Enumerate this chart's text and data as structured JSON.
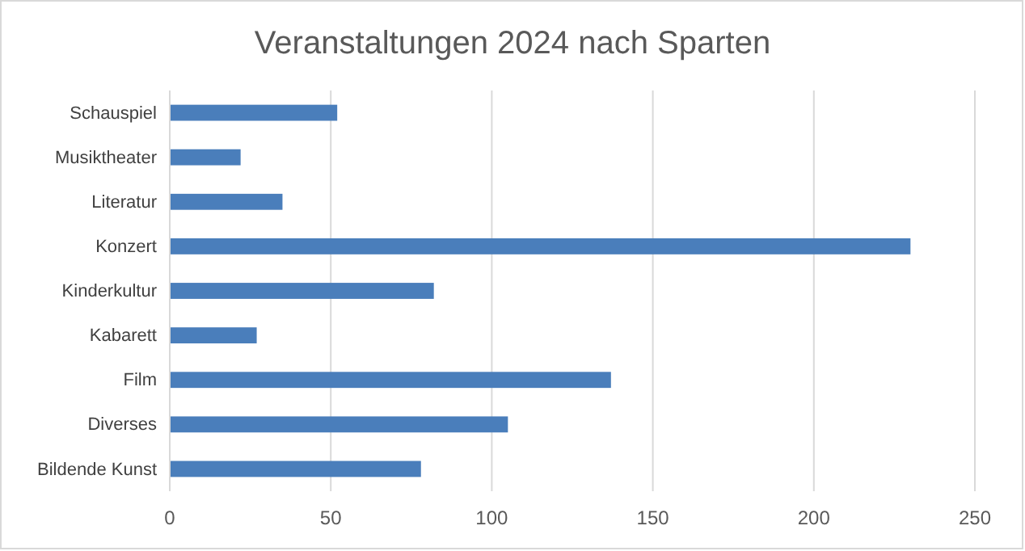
{
  "chart_data": {
    "type": "bar",
    "orientation": "horizontal",
    "title": "Veranstaltungen 2024 nach Sparten",
    "categories": [
      "Schauspiel",
      "Musiktheater",
      "Literatur",
      "Konzert",
      "Kinderkultur",
      "Kabarett",
      "Film",
      "Diverses",
      "Bildende Kunst"
    ],
    "values": [
      52,
      22,
      35,
      230,
      82,
      27,
      137,
      105,
      78
    ],
    "color": "#4a7ebb",
    "xlim": [
      0,
      250
    ],
    "xticks": [
      0,
      50,
      100,
      150,
      200,
      250
    ],
    "grid": "x"
  }
}
